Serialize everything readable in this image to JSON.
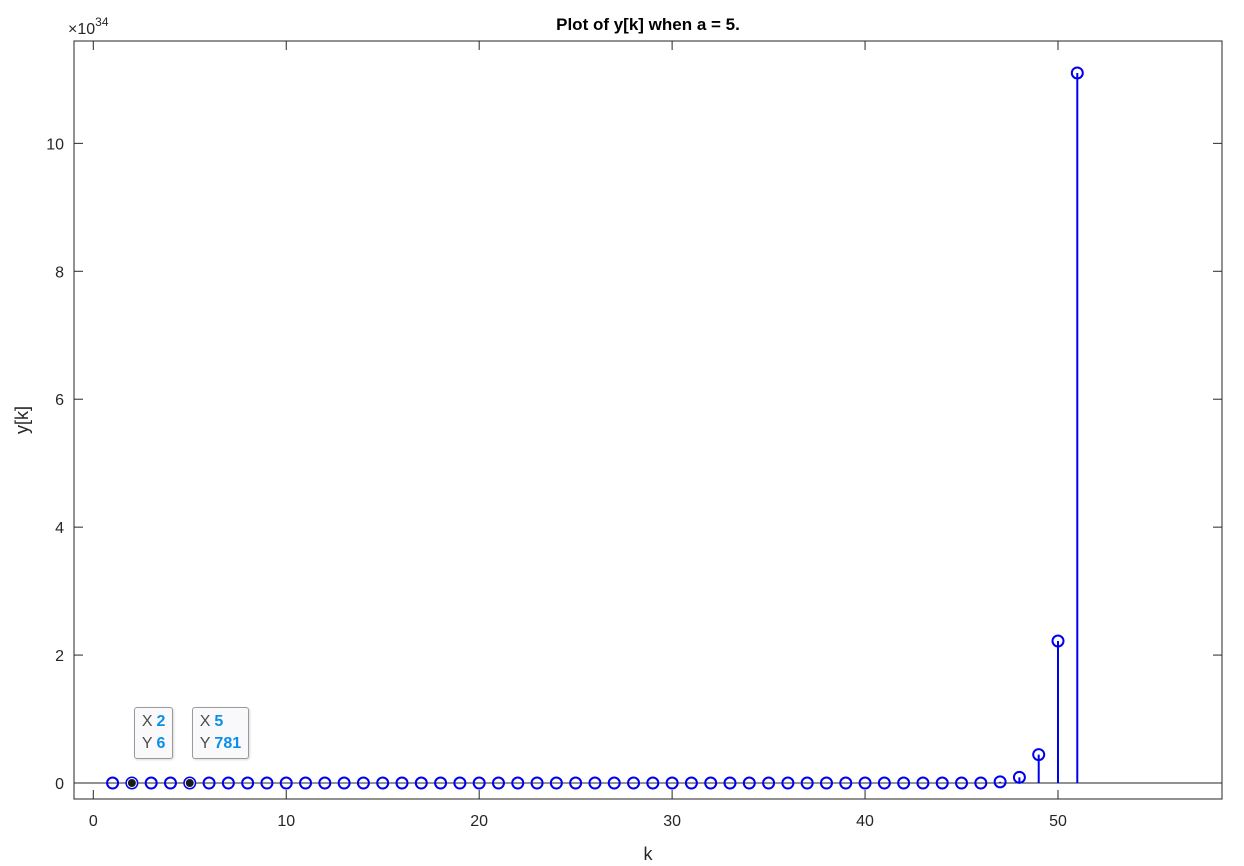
{
  "chart_data": {
    "type": "stem",
    "title": "Plot of y[k] when a = 5.",
    "xlabel": "k",
    "ylabel": "y[k]",
    "y_exponent_base": "×10",
    "y_exponent_power": "34",
    "xlim": [
      -1,
      58.5
    ],
    "ylim": [
      -0.25,
      11.6
    ],
    "xticks": [
      0,
      10,
      20,
      30,
      40,
      50
    ],
    "yticks": [
      0,
      2,
      4,
      6,
      8,
      10
    ],
    "series_color": "#0000ee",
    "series": [
      {
        "x": [
          1,
          2,
          3,
          4,
          5,
          6,
          7,
          8,
          9,
          10,
          11,
          12,
          13,
          14,
          15,
          16,
          17,
          18,
          19,
          20,
          21,
          22,
          23,
          24,
          25,
          26,
          27,
          28,
          29,
          30,
          31,
          32,
          33,
          34,
          35,
          36,
          37,
          38,
          39,
          40,
          41,
          42,
          43,
          44,
          45,
          46,
          47,
          48,
          49,
          50,
          51
        ],
        "y": [
          0,
          0,
          0,
          0,
          0,
          0,
          0,
          0,
          0,
          0,
          0,
          0,
          0,
          0,
          0,
          0,
          0,
          0,
          0,
          0,
          0,
          0,
          0,
          0,
          0,
          0,
          0,
          0,
          0,
          0,
          0,
          0,
          0,
          0,
          0,
          0,
          0,
          0,
          0,
          0,
          0,
          0,
          0,
          0,
          0,
          0,
          0.018,
          0.089,
          0.444,
          2.22,
          11.1
        ]
      }
    ],
    "datatips": [
      {
        "x_label": "X",
        "x_value": "2",
        "y_label": "Y",
        "y_value": "6",
        "x": 2,
        "y": 6
      },
      {
        "x_label": "X",
        "x_value": "5",
        "y_label": "Y",
        "y_value": "781",
        "x": 5,
        "y": 781
      }
    ]
  }
}
